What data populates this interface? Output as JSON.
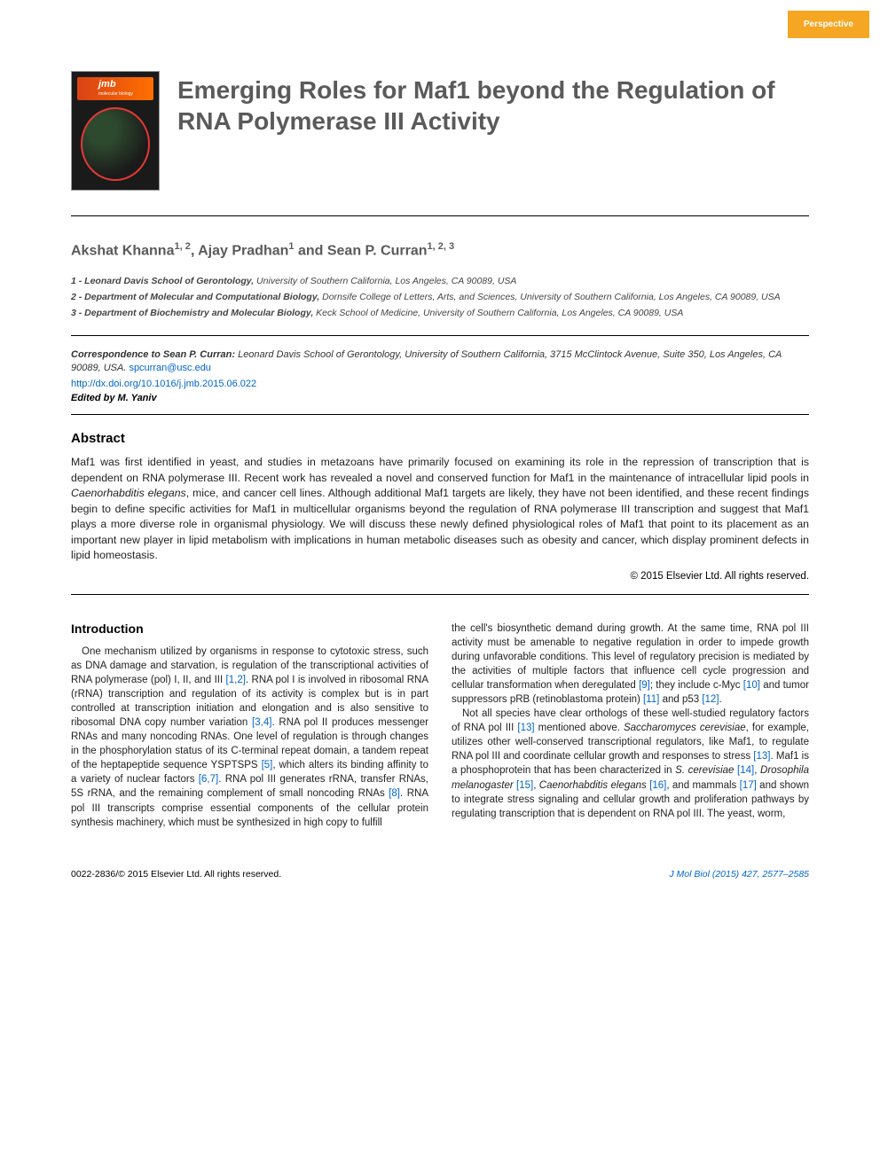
{
  "badge": "Perspective",
  "title": "Emerging Roles for Maf1 beyond the Regulation of RNA Polymerase III Activity",
  "journal_thumb": {
    "logo": "jmb",
    "subtitle": "molecular biology"
  },
  "authors_line": "Akshat Khanna",
  "author1_sup": "1, 2",
  "author2": ", Ajay Pradhan",
  "author2_sup": "1",
  "author3": " and Sean P. Curran",
  "author3_sup": "1, 2, 3",
  "affiliations": [
    {
      "num": "1 - ",
      "bold": "Leonard Davis School of Gerontology,",
      "rest": " University of Southern California, Los Angeles, CA 90089, USA"
    },
    {
      "num": "2 - ",
      "bold": "Department of Molecular and Computational Biology,",
      "rest": " Dornsife College of Letters, Arts, and Sciences, University of Southern California, Los Angeles, CA 90089, USA"
    },
    {
      "num": "3 - ",
      "bold": "Department of Biochemistry and Molecular Biology,",
      "rest": " Keck School of Medicine, University of Southern California, Los Angeles, CA 90089, USA"
    }
  ],
  "correspondence_label": "Correspondence to Sean P. Curran:",
  "correspondence_text": " Leonard Davis School of Gerontology, University of Southern California, 3715 McClintock Avenue, Suite 350, Los Angeles, CA 90089, USA. ",
  "correspondence_email": "spcurran@usc.edu",
  "doi": "http://dx.doi.org/10.1016/j.jmb.2015.06.022",
  "edited_by": "Edited by M. Yaniv",
  "abstract_heading": "Abstract",
  "abstract_text_1": "Maf1 was first identified in yeast, and studies in metazoans have primarily focused on examining its role in the repression of transcription that is dependent on RNA polymerase III. Recent work has revealed a novel and conserved function for Maf1 in the maintenance of intracellular lipid pools in ",
  "abstract_em1": "Caenorhabditis elegans",
  "abstract_text_2": ", mice, and cancer cell lines. Although additional Maf1 targets are likely, they have not been identified, and these recent findings begin to define specific activities for Maf1 in multicellular organisms beyond the regulation of RNA polymerase III transcription and suggest that Maf1 plays a more diverse role in organismal physiology. We will discuss these newly defined physiological roles of Maf1 that point to its placement as an important new player in lipid metabolism with implications in human metabolic diseases such as obesity and cancer, which display prominent defects in lipid homeostasis.",
  "copyright": "© 2015 Elsevier Ltd. All rights reserved.",
  "intro_heading": "Introduction",
  "col1_p1a": "One mechanism utilized by organisms in response to cytotoxic stress, such as DNA damage and starvation, is regulation of the transcriptional activities of RNA polymerase (pol) I, II, and III ",
  "col1_ref1": "[1,2]",
  "col1_p1b": ". RNA pol I is involved in ribosomal RNA (rRNA) transcription and regulation of its activity is complex but is in part controlled at transcription initiation and elongation and is also sensitive to ribosomal DNA copy number variation ",
  "col1_ref2": "[3,4]",
  "col1_p1c": ". RNA pol II produces messenger RNAs and many noncoding RNAs. One level of regulation is through changes in the phosphorylation status of its C-terminal repeat domain, a tandem repeat of the heptapeptide sequence YSPTSPS ",
  "col1_ref3": "[5]",
  "col1_p1d": ", which alters its binding affinity to a variety of nuclear factors ",
  "col1_ref4": "[6,7]",
  "col1_p1e": ". RNA pol III generates rRNA, transfer RNAs, 5S rRNA, and the remaining complement of small noncoding RNAs ",
  "col1_ref5": "[8]",
  "col1_p1f": ". RNA pol III transcripts comprise essential components of the cellular protein synthesis machinery, which must be synthesized in high copy to fulfill",
  "col2_p1a": "the cell's biosynthetic demand during growth. At the same time, RNA pol III activity must be amenable to negative regulation in order to impede growth during unfavorable conditions. This level of regulatory precision is mediated by the activities of multiple factors that influence cell cycle progression and cellular transformation when deregulated ",
  "col2_ref1": "[9]",
  "col2_p1b": "; they include c-Myc ",
  "col2_ref2": "[10]",
  "col2_p1c": " and tumor suppressors pRB (retinoblastoma protein) ",
  "col2_ref3": "[11]",
  "col2_p1d": " and p53 ",
  "col2_ref4": "[12]",
  "col2_p1e": ".",
  "col2_p2a": "Not all species have clear orthologs of these well-studied regulatory factors of RNA pol III ",
  "col2_ref5": "[13]",
  "col2_p2b": " mentioned above. ",
  "col2_em1": "Saccharomyces cerevisiae",
  "col2_p2c": ", for example, utilizes other well-conserved transcriptional regulators, like Maf1, to regulate RNA pol III and coordinate cellular growth and responses to stress ",
  "col2_ref6": "[13]",
  "col2_p2d": ". Maf1 is a phosphoprotein that has been characterized in ",
  "col2_em2": "S. cerevisiae",
  "col2_p2e": " ",
  "col2_ref7": "[14]",
  "col2_p2f": ", ",
  "col2_em3": "Drosophila melanogaster",
  "col2_p2g": " ",
  "col2_ref8": "[15]",
  "col2_p2h": ", ",
  "col2_em4": "Caenorhabditis elegans",
  "col2_p2i": " ",
  "col2_ref9": "[16]",
  "col2_p2j": ", and mammals ",
  "col2_ref10": "[17]",
  "col2_p2k": " and shown to integrate stress signaling and cellular growth and proliferation pathways by regulating transcription that is dependent on RNA pol III. The yeast, worm,",
  "footer_left": "0022-2836/© 2015 Elsevier Ltd. All rights reserved.",
  "footer_right": "J Mol Biol (2015) 427, 2577–2585",
  "colors": {
    "badge_bg": "#f5a623",
    "title_color": "#5a5a5a",
    "link_color": "#0066cc",
    "text_color": "#222222"
  }
}
